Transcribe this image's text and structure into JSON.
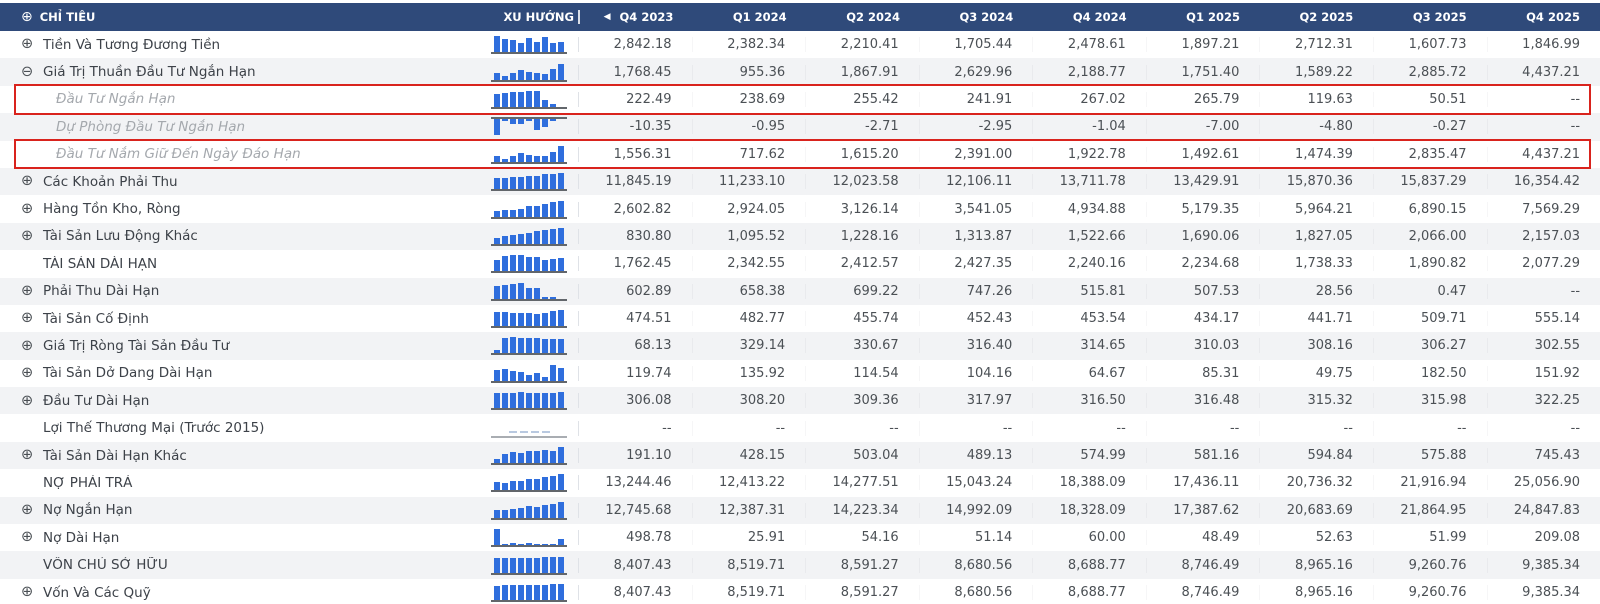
{
  "colors": {
    "header_bg": "#2f4a7a",
    "spark_bar": "#2f6edd",
    "highlight_red": "#d9231d",
    "row_alt": "#f2f3f5"
  },
  "icon_glyphs": {
    "plus-circle-icon": "⊕",
    "minus-circle-icon": "⊖",
    "prev-arrow-icon": "◀"
  },
  "table": {
    "header": {
      "indicator": "CHỈ TIÊU",
      "trend": "XU HƯỚNG",
      "prev_arrow": "◀",
      "quarters": [
        "Q4 2023",
        "Q1 2024",
        "Q2 2024",
        "Q3 2024",
        "Q4 2024",
        "Q1 2025",
        "Q2 2025",
        "Q3 2025",
        "Q4 2025"
      ]
    },
    "null_display": "--",
    "rows": [
      {
        "label": "Tiền Và Tương Đương Tiền",
        "icon": "plus-circle-icon",
        "style": "normal",
        "highlight": false,
        "values": [
          "2,842.18",
          "2,382.34",
          "2,210.41",
          "1,705.44",
          "2,478.61",
          "1,897.21",
          "2,712.31",
          "1,607.73",
          "1,846.99"
        ]
      },
      {
        "label": "Giá Trị Thuần Đầu Tư Ngắn Hạn",
        "icon": "minus-circle-icon",
        "style": "normal",
        "highlight": false,
        "values": [
          "1,768.45",
          "955.36",
          "1,867.91",
          "2,629.96",
          "2,188.77",
          "1,751.40",
          "1,589.22",
          "2,885.72",
          "4,437.21"
        ]
      },
      {
        "label": "Đầu Tư Ngắn Hạn",
        "icon": null,
        "style": "sub",
        "highlight": true,
        "values": [
          "222.49",
          "238.69",
          "255.42",
          "241.91",
          "267.02",
          "265.79",
          "119.63",
          "50.51",
          "--"
        ]
      },
      {
        "label": "Dự Phòng Đầu Tư Ngắn Hạn",
        "icon": null,
        "style": "sub",
        "highlight": false,
        "values": [
          "-10.35",
          "-0.95",
          "-2.71",
          "-2.95",
          "-1.04",
          "-7.00",
          "-4.80",
          "-0.27",
          "--"
        ]
      },
      {
        "label": "Đầu Tư Nắm Giữ Đến Ngày Đáo Hạn",
        "icon": null,
        "style": "sub",
        "highlight": true,
        "values": [
          "1,556.31",
          "717.62",
          "1,615.20",
          "2,391.00",
          "1,922.78",
          "1,492.61",
          "1,474.39",
          "2,835.47",
          "4,437.21"
        ]
      },
      {
        "label": "Các Khoản Phải Thu",
        "icon": "plus-circle-icon",
        "style": "normal",
        "highlight": false,
        "values": [
          "11,845.19",
          "11,233.10",
          "12,023.58",
          "12,106.11",
          "13,711.78",
          "13,429.91",
          "15,870.36",
          "15,837.29",
          "16,354.42"
        ]
      },
      {
        "label": "Hàng Tồn Kho, Ròng",
        "icon": "plus-circle-icon",
        "style": "normal",
        "highlight": false,
        "values": [
          "2,602.82",
          "2,924.05",
          "3,126.14",
          "3,541.05",
          "4,934.88",
          "5,179.35",
          "5,964.21",
          "6,890.15",
          "7,569.29"
        ]
      },
      {
        "label": "Tài Sản Lưu Động Khác",
        "icon": "plus-circle-icon",
        "style": "normal",
        "highlight": false,
        "values": [
          "830.80",
          "1,095.52",
          "1,228.16",
          "1,313.87",
          "1,522.66",
          "1,690.06",
          "1,827.05",
          "2,066.00",
          "2,157.03"
        ]
      },
      {
        "label": "TÀI SẢN DÀI HẠN",
        "icon": null,
        "style": "section",
        "highlight": false,
        "values": [
          "1,762.45",
          "2,342.55",
          "2,412.57",
          "2,427.35",
          "2,240.16",
          "2,234.68",
          "1,738.33",
          "1,890.82",
          "2,077.29"
        ]
      },
      {
        "label": "Phải Thu Dài Hạn",
        "icon": "plus-circle-icon",
        "style": "normal",
        "highlight": false,
        "values": [
          "602.89",
          "658.38",
          "699.22",
          "747.26",
          "515.81",
          "507.53",
          "28.56",
          "0.47",
          "--"
        ]
      },
      {
        "label": "Tài Sản Cố Định",
        "icon": "plus-circle-icon",
        "style": "normal",
        "highlight": false,
        "values": [
          "474.51",
          "482.77",
          "455.74",
          "452.43",
          "453.54",
          "434.17",
          "441.71",
          "509.71",
          "555.14"
        ]
      },
      {
        "label": "Giá Trị Ròng Tài Sản Đầu Tư",
        "icon": "plus-circle-icon",
        "style": "normal",
        "highlight": false,
        "values": [
          "68.13",
          "329.14",
          "330.67",
          "316.40",
          "314.65",
          "310.03",
          "308.16",
          "306.27",
          "302.55"
        ]
      },
      {
        "label": "Tài Sản Dở Dang Dài Hạn",
        "icon": "plus-circle-icon",
        "style": "normal",
        "highlight": false,
        "values": [
          "119.74",
          "135.92",
          "114.54",
          "104.16",
          "64.67",
          "85.31",
          "49.75",
          "182.50",
          "151.92"
        ]
      },
      {
        "label": "Đầu Tư Dài Hạn",
        "icon": "plus-circle-icon",
        "style": "normal",
        "highlight": false,
        "values": [
          "306.08",
          "308.20",
          "309.36",
          "317.97",
          "316.50",
          "316.48",
          "315.32",
          "315.98",
          "322.25"
        ]
      },
      {
        "label": "Lợi Thế Thương Mại (Trước 2015)",
        "icon": null,
        "style": "plain",
        "highlight": false,
        "values": [
          "--",
          "--",
          "--",
          "--",
          "--",
          "--",
          "--",
          "--",
          "--"
        ]
      },
      {
        "label": "Tài Sản Dài Hạn Khác",
        "icon": "plus-circle-icon",
        "style": "normal",
        "highlight": false,
        "values": [
          "191.10",
          "428.15",
          "503.04",
          "489.13",
          "574.99",
          "581.16",
          "594.84",
          "575.88",
          "745.43"
        ]
      },
      {
        "label": "NỢ PHẢI TRẢ",
        "icon": null,
        "style": "section",
        "highlight": false,
        "values": [
          "13,244.46",
          "12,413.22",
          "14,277.51",
          "15,043.24",
          "18,388.09",
          "17,436.11",
          "20,736.32",
          "21,916.94",
          "25,056.90"
        ]
      },
      {
        "label": "Nợ Ngắn Hạn",
        "icon": "plus-circle-icon",
        "style": "normal",
        "highlight": false,
        "values": [
          "12,745.68",
          "12,387.31",
          "14,223.34",
          "14,992.09",
          "18,328.09",
          "17,387.62",
          "20,683.69",
          "21,864.95",
          "24,847.83"
        ]
      },
      {
        "label": "Nợ Dài Hạn",
        "icon": "plus-circle-icon",
        "style": "normal",
        "highlight": false,
        "values": [
          "498.78",
          "25.91",
          "54.16",
          "51.14",
          "60.00",
          "48.49",
          "52.63",
          "51.99",
          "209.08"
        ]
      },
      {
        "label": "VỐN CHỦ SỞ HỮU",
        "icon": null,
        "style": "section",
        "highlight": false,
        "values": [
          "8,407.43",
          "8,519.71",
          "8,591.27",
          "8,680.56",
          "8,688.77",
          "8,746.49",
          "8,965.16",
          "9,260.76",
          "9,385.34"
        ]
      },
      {
        "label": "Vốn Và Các Quỹ",
        "icon": "plus-circle-icon",
        "style": "normal",
        "highlight": false,
        "values": [
          "8,407.43",
          "8,519.71",
          "8,591.27",
          "8,680.56",
          "8,688.77",
          "8,746.49",
          "8,965.16",
          "9,260.76",
          "9,385.34"
        ]
      }
    ]
  }
}
